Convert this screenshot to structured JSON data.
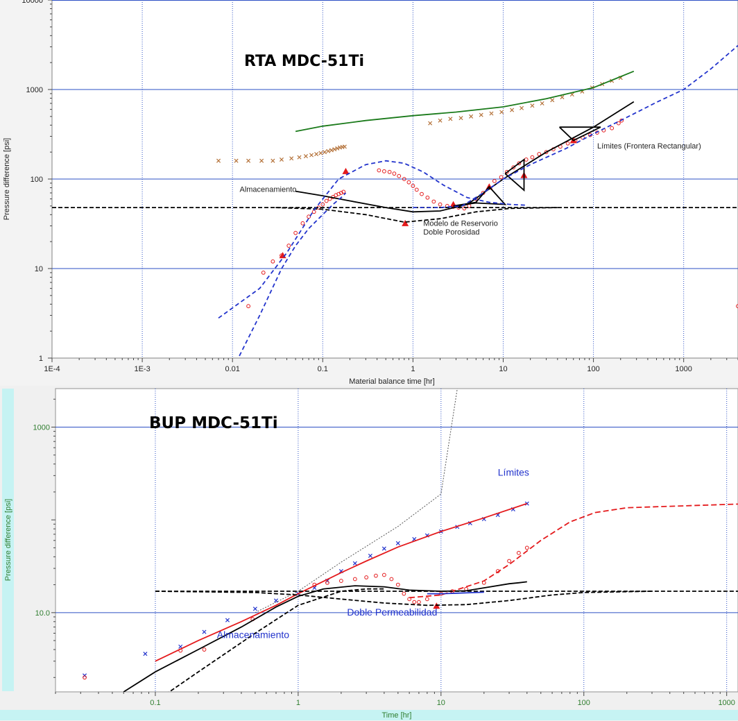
{
  "chart_data": [
    {
      "type": "scatter",
      "title": "RTA MDC-51Ti",
      "xlabel": "Material balance time [hr]",
      "ylabel": "Pressure difference [psi]",
      "x_scale": "log",
      "y_scale": "log",
      "xlim": [
        0.0001,
        4000
      ],
      "ylim": [
        1,
        10000
      ],
      "x_ticks": [
        "1E-4",
        "1E-3",
        "0.01",
        "0.1",
        "1",
        "10",
        "100",
        "1000"
      ],
      "y_ticks": [
        "1",
        "10",
        "100",
        "1000",
        "10000"
      ],
      "grid": true,
      "annotations": [
        {
          "text": "Almacenamiento",
          "x": 0.012,
          "y": 72
        },
        {
          "text": "Modelo de Reservorio",
          "x": 1.3,
          "y": 30
        },
        {
          "text": "Doble Porosidad",
          "x": 1.3,
          "y": 24
        },
        {
          "text": "Límites (Frontera Rectangular)",
          "x": 110,
          "y": 220
        }
      ],
      "series": [
        {
          "kind": "markers-x",
          "color": "#b5733b",
          "x": [
            0.007,
            0.011,
            0.015,
            0.021,
            0.028,
            0.035,
            0.045,
            0.055,
            0.065,
            0.075,
            0.085,
            0.095,
            0.105,
            0.115,
            0.125,
            0.135,
            0.145,
            0.155,
            0.165,
            0.175,
            1.55,
            2.0,
            2.6,
            3.4,
            4.4,
            5.7,
            7.4,
            9.6,
            12.5,
            16,
            21,
            27,
            35,
            45,
            58,
            75,
            97,
            125,
            160,
            200
          ],
          "y": [
            160,
            160,
            160,
            160,
            160,
            165,
            170,
            175,
            180,
            185,
            190,
            195,
            200,
            205,
            210,
            215,
            220,
            225,
            228,
            230,
            420,
            450,
            470,
            480,
            500,
            520,
            540,
            560,
            590,
            620,
            660,
            700,
            760,
            820,
            880,
            950,
            1050,
            1150,
            1250,
            1350
          ]
        },
        {
          "kind": "markers-o",
          "color": "#e41a1c",
          "x": [
            0.015,
            0.022,
            0.028,
            0.035,
            0.042,
            0.05,
            0.06,
            0.07,
            0.08,
            0.09,
            0.1,
            0.11,
            0.12,
            0.13,
            0.14,
            0.15,
            0.16,
            0.17,
            0.42,
            0.48,
            0.55,
            0.62,
            0.7,
            0.8,
            0.9,
            1.0,
            1.1,
            1.25,
            1.45,
            1.7,
            2.0,
            2.4,
            2.8,
            3.2,
            3.7,
            4.2,
            5.0,
            6.0,
            7.0,
            8.0,
            9.5,
            11,
            13,
            15,
            18,
            21,
            25,
            30,
            36,
            43,
            52,
            63,
            76,
            92,
            110,
            130,
            160,
            190,
            205,
            4000
          ],
          "y": [
            3.8,
            9,
            12,
            14,
            18,
            25,
            32,
            38,
            43,
            48,
            52,
            57,
            60,
            63,
            66,
            68,
            70,
            72,
            125,
            122,
            120,
            115,
            108,
            100,
            92,
            84,
            76,
            68,
            62,
            56,
            52,
            50,
            49,
            48,
            47,
            50,
            60,
            70,
            80,
            95,
            105,
            120,
            135,
            150,
            165,
            175,
            190,
            200,
            215,
            230,
            250,
            270,
            290,
            310,
            330,
            350,
            370,
            420,
            450,
            3.8
          ]
        },
        {
          "kind": "markers-tri",
          "color": "#e41a1c",
          "x": [
            0.036,
            0.18,
            0.82,
            2.8,
            7.0,
            17.0,
            60
          ],
          "y": [
            14,
            122,
            32,
            52,
            82,
            110,
            270
          ]
        },
        {
          "kind": "line",
          "color": "#1a7a1a",
          "dash": "",
          "x": [
            0.05,
            0.1,
            0.3,
            1,
            3,
            10,
            30,
            100,
            280
          ],
          "y": [
            340,
            390,
            450,
            510,
            560,
            640,
            790,
            1050,
            1600
          ]
        },
        {
          "kind": "line",
          "color": "#000000",
          "dash": "",
          "x": [
            0.05,
            0.1,
            0.2,
            0.5,
            1,
            2,
            4
          ],
          "y": [
            73,
            65,
            57,
            48,
            43,
            44,
            52
          ]
        },
        {
          "kind": "line",
          "color": "#000000",
          "dash": "",
          "x": [
            4,
            10,
            30,
            100,
            280
          ],
          "y": [
            52,
            100,
            200,
            380,
            730
          ]
        },
        {
          "kind": "line",
          "color": "#000000",
          "dash": "",
          "x": [
            2.8,
            5,
            7,
            10.5,
            5,
            2.8
          ],
          "y": [
            50,
            55,
            82,
            52,
            54,
            50
          ]
        },
        {
          "kind": "line",
          "color": "#000000",
          "dash": "",
          "x": [
            10.5,
            17,
            17,
            10.5
          ],
          "y": [
            115,
            165,
            75,
            115
          ]
        },
        {
          "kind": "line",
          "color": "#000000",
          "dash": "",
          "x": [
            42,
            120,
            60,
            42
          ],
          "y": [
            380,
            380,
            270,
            380
          ]
        },
        {
          "kind": "line",
          "color": "#000000",
          "dash": "6,3",
          "x": [
            0.0001,
            4000
          ],
          "y": [
            48,
            48
          ]
        },
        {
          "kind": "line",
          "color": "#000000",
          "dash": "6,3",
          "x": [
            0.03,
            0.1,
            0.3,
            0.8,
            2,
            5,
            12,
            40
          ],
          "y": [
            48,
            46,
            40,
            33,
            36,
            43,
            47,
            48
          ]
        },
        {
          "kind": "line",
          "color": "#2233cc",
          "dash": "6,4",
          "x": [
            0.007,
            0.02,
            0.04,
            0.08,
            0.15,
            0.3,
            0.5,
            0.8,
            1.3,
            2.2,
            4,
            7,
            12,
            18
          ],
          "y": [
            2.8,
            6,
            15,
            45,
            100,
            145,
            160,
            150,
            120,
            85,
            62,
            55,
            52,
            51
          ]
        },
        {
          "kind": "line",
          "color": "#2233cc",
          "dash": "6,4",
          "x": [
            0.011,
            0.02,
            0.035,
            0.05,
            0.07,
            0.1,
            0.13,
            0.16,
            0.18
          ],
          "y": [
            0.9,
            3,
            10,
            18,
            28,
            40,
            52,
            62,
            70
          ]
        },
        {
          "kind": "line",
          "color": "#2233cc",
          "dash": "6,4",
          "x": [
            1.0,
            2.0,
            3.5,
            6,
            10,
            20,
            50,
            100,
            200,
            500,
            1000,
            2000,
            4000
          ],
          "y": [
            48,
            48,
            50,
            70,
            100,
            145,
            220,
            320,
            450,
            720,
            1000,
            1700,
            3100
          ]
        }
      ]
    },
    {
      "type": "scatter",
      "title": "BUP MDC-51Ti",
      "xlabel": "Time [hr]",
      "ylabel": "Pressure difference [psi]",
      "x_scale": "log",
      "y_scale": "log",
      "xlim": [
        0.02,
        1200
      ],
      "ylim": [
        1.4,
        2600
      ],
      "x_ticks": [
        "0.1",
        "1",
        "10",
        "100",
        "1000"
      ],
      "y_ticks": [
        "10.0",
        "1000"
      ],
      "grid": true,
      "annotations": [
        {
          "text": "Límites",
          "x": 25,
          "y": 300,
          "color": "#2233cc"
        },
        {
          "text": "Doble Permeabilidad",
          "x": 2.2,
          "y": 9.3,
          "color": "#2233cc"
        },
        {
          "text": "Almacenamiento",
          "x": 0.27,
          "y": 5.3,
          "color": "#2233cc"
        }
      ],
      "series": [
        {
          "kind": "markers-x",
          "color": "#2233cc",
          "x": [
            0.032,
            0.085,
            0.15,
            0.22,
            0.32,
            0.5,
            0.7,
            1.0,
            1.3,
            1.6,
            2.0,
            2.5,
            3.2,
            4,
            5,
            6.5,
            8,
            10,
            13,
            16,
            20,
            25,
            32,
            40
          ],
          "y": [
            2.1,
            3.6,
            4.3,
            6.2,
            8.3,
            11,
            13.5,
            16,
            18.5,
            22,
            28,
            34,
            41,
            49,
            56,
            62,
            68,
            75,
            84,
            92,
            102,
            113,
            130,
            150
          ]
        },
        {
          "kind": "markers-o",
          "color": "#e41a1c",
          "x": [
            0.032,
            0.15,
            0.22,
            0.48,
            1.3,
            1.6,
            2.0,
            2.5,
            3.0,
            3.5,
            4.0,
            4.5,
            5.0,
            5.5,
            6.0,
            6.5,
            7.0,
            8.0,
            10,
            12,
            15,
            20,
            25,
            30,
            35,
            40
          ],
          "y": [
            2.0,
            3.9,
            4.0,
            8.5,
            20,
            21,
            22,
            23,
            24,
            25,
            25.5,
            23,
            20,
            16,
            14,
            13,
            13,
            14,
            16,
            17,
            18,
            21,
            28,
            36,
            44,
            50
          ]
        },
        {
          "kind": "markers-tri",
          "color": "#e41a1c",
          "x": [
            9.3
          ],
          "y": [
            11.8
          ]
        },
        {
          "kind": "line",
          "color": "#e41a1c",
          "dash": "",
          "x": [
            0.1,
            0.2,
            0.4,
            0.7,
            1,
            2,
            3,
            5,
            10,
            20,
            40
          ],
          "y": [
            3,
            5,
            8,
            12,
            16,
            27,
            36,
            51,
            75,
            105,
            150
          ]
        },
        {
          "kind": "line",
          "color": "#000000",
          "dash": "",
          "x": [
            0.06,
            0.1,
            0.2,
            0.4,
            0.7,
            1,
            1.5,
            2.5,
            4,
            6,
            10,
            15,
            20,
            30,
            35,
            40
          ],
          "y": [
            1.4,
            2.3,
            4,
            7,
            11.5,
            15,
            18,
            19.5,
            19,
            17.5,
            17,
            17.2,
            18.5,
            20.5,
            21,
            21.5
          ]
        },
        {
          "kind": "line",
          "color": "#e41a1c",
          "dash": "8,4",
          "x": [
            6,
            10,
            20,
            30,
            50,
            80,
            120,
            200,
            400,
            800,
            1200
          ],
          "y": [
            14.5,
            15.5,
            22,
            33,
            60,
            95,
            120,
            135,
            140,
            145,
            148
          ]
        },
        {
          "kind": "line",
          "color": "#000000",
          "dash": "6,3",
          "x": [
            0.1,
            1200
          ],
          "y": [
            17,
            17
          ]
        },
        {
          "kind": "line",
          "color": "#000000",
          "dash": "6,3",
          "x": [
            0.1,
            0.5,
            1,
            2,
            4,
            8,
            15,
            30,
            60,
            100,
            300
          ],
          "y": [
            17,
            16.5,
            15.5,
            14,
            12.7,
            12,
            12.2,
            13.5,
            15.5,
            16.5,
            17
          ]
        },
        {
          "kind": "line",
          "color": "#000000",
          "dash": "6,3",
          "x": [
            0.1,
            0.2,
            0.5,
            1,
            2,
            3,
            4
          ],
          "y": [
            1.1,
            2.3,
            6,
            12,
            17,
            18,
            18
          ]
        },
        {
          "kind": "line",
          "color": "#555555",
          "dash": "2,2",
          "x": [
            0.5,
            1,
            2,
            5,
            10,
            13
          ],
          "y": [
            10,
            17,
            35,
            85,
            190,
            2600
          ]
        },
        {
          "kind": "line",
          "color": "#2233cc",
          "dash": "",
          "x": [
            8,
            10,
            13,
            16,
            20
          ],
          "y": [
            16,
            16,
            16.2,
            16.4,
            16.6
          ]
        }
      ]
    }
  ]
}
